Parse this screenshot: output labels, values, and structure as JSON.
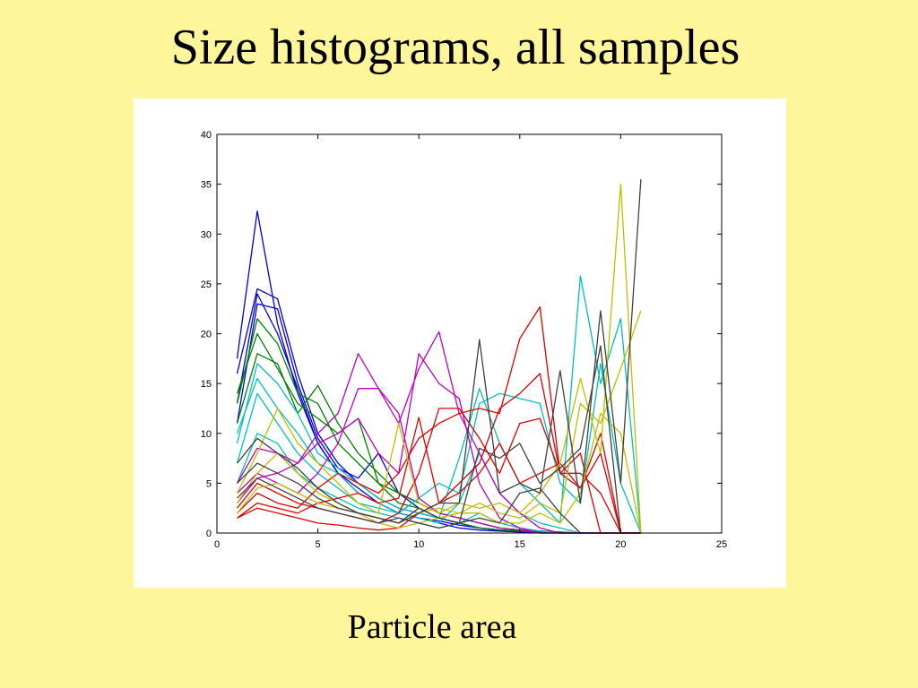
{
  "slide": {
    "title": "Size histograms, all samples",
    "xlabel": "Particle area",
    "background": "#fff59a"
  },
  "chart_data": {
    "type": "line",
    "title": "Size histograms, all samples",
    "xlabel": "Particle area",
    "ylabel": "",
    "xlim": [
      0,
      25
    ],
    "ylim": [
      0,
      40
    ],
    "xticks": [
      0,
      5,
      10,
      15,
      20,
      25
    ],
    "yticks": [
      0,
      5,
      10,
      15,
      20,
      25,
      30,
      35,
      40
    ],
    "grid": false,
    "legend": "none",
    "x": [
      1,
      2,
      3,
      4,
      5,
      6,
      7,
      8,
      9,
      10,
      11,
      12,
      13,
      14,
      15,
      16,
      17,
      18,
      19,
      20,
      21
    ],
    "series": [
      {
        "color": "#0000dd",
        "values": [
          17.5,
          32.3,
          21.0,
          14.0,
          9.0,
          6.0,
          4.5,
          3.0,
          2.0,
          1.5,
          1.2,
          0.8,
          0.5,
          0.3,
          0.2,
          0.1,
          0.0,
          0.0,
          0.0,
          0.0,
          0.0
        ]
      },
      {
        "color": "#0000dd",
        "values": [
          16.0,
          24.5,
          23.5,
          16.0,
          10.0,
          7.0,
          5.0,
          3.5,
          2.5,
          2.0,
          1.5,
          1.0,
          0.5,
          0.3,
          0.2,
          0.1,
          0.0,
          0.0,
          0.0,
          0.0,
          0.0
        ]
      },
      {
        "color": "#0000dd",
        "values": [
          11.0,
          23.0,
          22.5,
          15.0,
          9.5,
          6.5,
          5.5,
          8.0,
          4.0,
          2.5,
          1.5,
          1.0,
          0.5,
          0.3,
          0.2,
          0.1,
          0.0,
          0.0,
          0.0,
          0.0,
          0.0
        ]
      },
      {
        "color": "#0000dd",
        "values": [
          13.0,
          24.0,
          20.0,
          14.5,
          9.0,
          6.0,
          4.0,
          3.0,
          2.0,
          1.5,
          1.0,
          0.5,
          0.3,
          0.2,
          0.1,
          0.0,
          0.0,
          0.0,
          0.0,
          0.0,
          0.0
        ]
      },
      {
        "color": "#008000",
        "values": [
          13.0,
          21.5,
          19.0,
          14.0,
          13.0,
          9.0,
          7.0,
          5.0,
          4.0,
          3.0,
          2.0,
          1.5,
          1.0,
          0.5,
          0.3,
          0.2,
          0.1,
          0.0,
          0.0,
          0.0,
          0.0
        ]
      },
      {
        "color": "#008000",
        "values": [
          11.0,
          18.0,
          17.0,
          12.0,
          14.8,
          11.0,
          8.0,
          6.0,
          4.0,
          3.0,
          2.0,
          1.5,
          1.0,
          0.5,
          0.3,
          0.2,
          0.1,
          0.0,
          0.0,
          0.0,
          0.0
        ]
      },
      {
        "color": "#008000",
        "values": [
          14.0,
          20.0,
          16.5,
          13.0,
          11.5,
          10.0,
          11.5,
          5.0,
          3.0,
          2.5,
          1.5,
          1.0,
          0.5,
          0.3,
          0.2,
          0.1,
          0.0,
          0.0,
          0.0,
          0.0,
          0.0
        ]
      },
      {
        "color": "#00bfbf",
        "values": [
          9.0,
          17.0,
          15.0,
          12.0,
          8.0,
          6.5,
          5.0,
          3.5,
          2.5,
          2.0,
          1.5,
          7.5,
          14.5,
          9.0,
          5.0,
          3.0,
          1.0,
          25.8,
          15.0,
          21.5,
          0.0
        ]
      },
      {
        "color": "#00bfbf",
        "values": [
          10.0,
          15.5,
          12.5,
          10.0,
          7.0,
          6.0,
          4.0,
          3.0,
          2.0,
          3.5,
          5.0,
          4.0,
          13.0,
          14.0,
          13.5,
          13.0,
          5.0,
          3.0,
          17.0,
          5.0,
          0.0
        ]
      },
      {
        "color": "#00bfbf",
        "values": [
          7.0,
          14.0,
          11.0,
          8.0,
          6.0,
          4.5,
          3.0,
          2.5,
          2.0,
          1.5,
          1.0,
          3.0,
          8.0,
          4.0,
          2.0,
          1.0,
          0.5,
          0.0,
          0.0,
          0.0,
          0.0
        ]
      },
      {
        "color": "#00bfbf",
        "values": [
          5.0,
          10.0,
          9.0,
          6.0,
          4.5,
          3.5,
          2.5,
          2.0,
          1.5,
          1.0,
          0.5,
          1.0,
          2.0,
          1.0,
          0.5,
          0.2,
          0.0,
          0.0,
          0.0,
          0.0,
          0.0
        ]
      },
      {
        "color": "#bf00bf",
        "values": [
          5.0,
          8.5,
          8.0,
          7.0,
          10.0,
          12.0,
          18.0,
          14.5,
          11.0,
          16.5,
          20.2,
          12.0,
          8.0,
          4.0,
          2.0,
          0.5,
          0.0,
          0.0,
          0.0,
          0.0,
          0.0
        ]
      },
      {
        "color": "#bf00bf",
        "values": [
          4.0,
          6.0,
          5.0,
          4.0,
          6.0,
          9.0,
          14.5,
          14.5,
          12.0,
          3.5,
          2.0,
          1.5,
          1.0,
          0.5,
          0.3,
          0.0,
          0.0,
          0.0,
          0.0,
          0.0,
          0.0
        ]
      },
      {
        "color": "#bf00bf",
        "values": [
          3.0,
          5.5,
          6.0,
          7.0,
          9.0,
          10.0,
          11.5,
          8.0,
          6.0,
          18.0,
          15.0,
          13.5,
          5.0,
          1.5,
          0.5,
          0.0,
          0.0,
          0.0,
          0.0,
          0.0,
          0.0
        ]
      },
      {
        "color": "#dd0000",
        "values": [
          2.0,
          4.0,
          3.0,
          2.5,
          4.5,
          6.0,
          5.0,
          4.0,
          6.0,
          9.5,
          11.0,
          12.0,
          12.5,
          12.0,
          19.5,
          22.7,
          6.0,
          8.0,
          0.0,
          0.0,
          0.0
        ]
      },
      {
        "color": "#dd0000",
        "values": [
          1.5,
          3.0,
          2.5,
          2.0,
          3.0,
          3.5,
          4.0,
          3.0,
          3.5,
          11.6,
          3.0,
          5.0,
          7.0,
          12.5,
          14.0,
          16.0,
          6.0,
          4.5,
          10.0,
          0.0,
          0.0
        ]
      },
      {
        "color": "#dd0000",
        "values": [
          2.5,
          5.0,
          4.0,
          3.0,
          2.5,
          2.0,
          1.5,
          1.0,
          2.0,
          6.0,
          12.5,
          12.5,
          9.5,
          6.0,
          11.0,
          11.5,
          6.0,
          6.0,
          4.0,
          0.0,
          0.0
        ]
      },
      {
        "color": "#dd0000",
        "values": [
          1.5,
          2.5,
          2.0,
          1.5,
          1.0,
          0.8,
          0.5,
          0.3,
          0.5,
          2.0,
          3.0,
          4.0,
          6.0,
          9.0,
          5.0,
          6.0,
          7.0,
          4.5,
          8.0,
          0.0,
          0.0
        ]
      },
      {
        "color": "#bfbf00",
        "values": [
          4.0,
          8.0,
          12.5,
          9.0,
          7.0,
          5.0,
          3.0,
          2.0,
          11.0,
          3.0,
          2.0,
          3.0,
          2.5,
          3.0,
          2.0,
          4.0,
          7.0,
          15.5,
          8.0,
          35.0,
          0.0
        ]
      },
      {
        "color": "#bfbf00",
        "values": [
          3.0,
          6.0,
          8.0,
          6.0,
          4.0,
          3.0,
          2.0,
          1.5,
          1.0,
          2.0,
          2.5,
          2.0,
          3.0,
          2.0,
          1.5,
          3.0,
          2.0,
          13.0,
          11.0,
          16.5,
          22.3
        ]
      },
      {
        "color": "#bfbf00",
        "values": [
          2.0,
          4.5,
          5.0,
          4.0,
          3.0,
          2.5,
          2.0,
          1.0,
          0.5,
          1.0,
          1.5,
          2.0,
          2.0,
          1.0,
          1.0,
          2.0,
          1.0,
          4.0,
          12.0,
          10.0,
          0.0
        ]
      },
      {
        "color": "#404040",
        "values": [
          7.0,
          9.5,
          8.0,
          6.5,
          4.5,
          3.0,
          2.0,
          1.5,
          1.0,
          2.0,
          3.0,
          3.0,
          19.4,
          4.0,
          5.0,
          4.0,
          16.3,
          3.0,
          22.3,
          5.0,
          35.5
        ]
      },
      {
        "color": "#404040",
        "values": [
          5.0,
          7.0,
          6.0,
          5.0,
          3.5,
          2.5,
          2.0,
          1.5,
          1.0,
          2.5,
          1.5,
          1.0,
          8.5,
          7.5,
          9.0,
          5.0,
          6.5,
          8.5,
          18.8,
          0.0,
          0.0
        ]
      },
      {
        "color": "#404040",
        "values": [
          3.5,
          5.5,
          4.5,
          3.5,
          2.5,
          2.0,
          1.5,
          1.0,
          1.5,
          1.0,
          0.5,
          1.0,
          1.5,
          1.0,
          4.0,
          4.5,
          2.0,
          0.0,
          0.0,
          0.0,
          0.0
        ]
      }
    ]
  }
}
